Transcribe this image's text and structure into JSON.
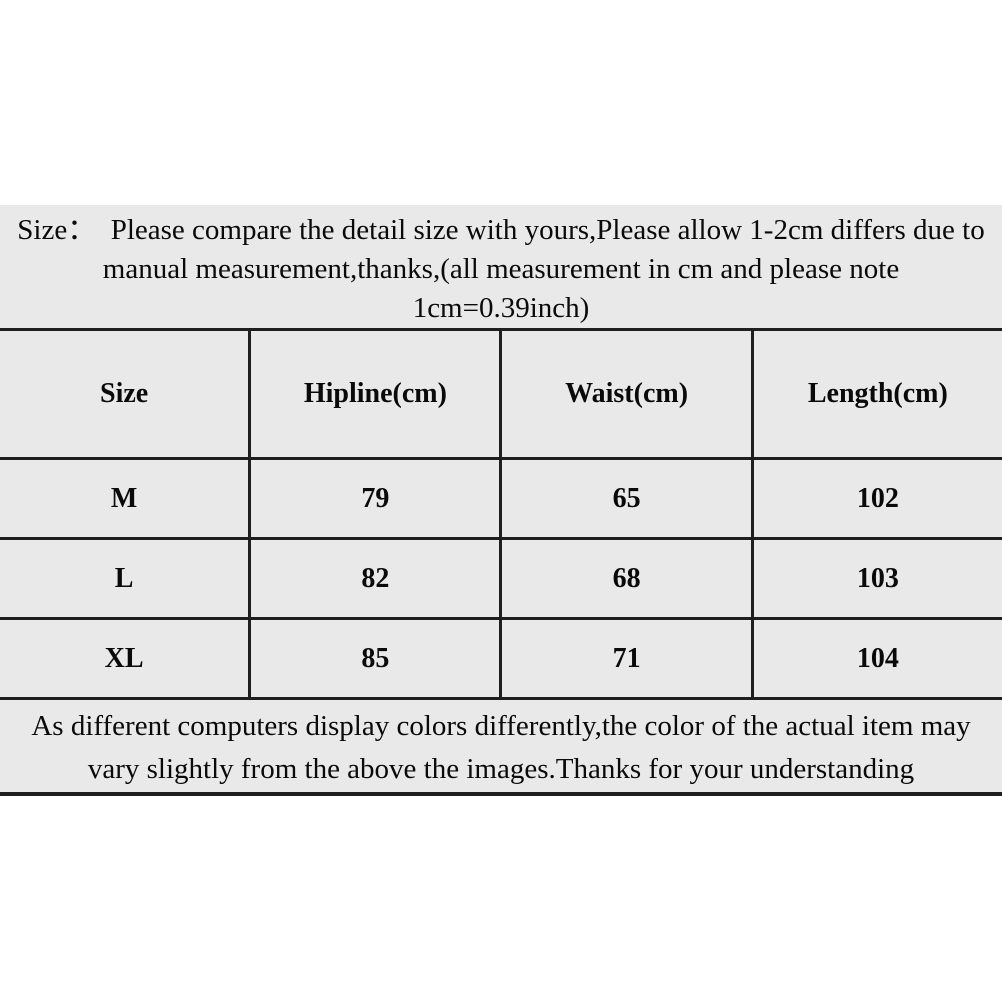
{
  "colors": {
    "page_bg": "#ffffff",
    "panel_bg": "#e9e9e9",
    "border": "#1f1f1f",
    "text": "#0a0a0a"
  },
  "top_note": {
    "lines": [
      "Size：  Please compare the detail size with yours,Please allow 1-2cm differs due to",
      "manual measurement,thanks,(all measurement in cm and please note",
      "1cm=0.39inch)"
    ]
  },
  "size_table": {
    "headers": [
      "Size",
      "Hipline(cm)",
      "Waist(cm)",
      "Length(cm)"
    ],
    "rows": [
      [
        "M",
        "79",
        "65",
        "102"
      ],
      [
        "L",
        "82",
        "68",
        "103"
      ],
      [
        "XL",
        "85",
        "71",
        "104"
      ]
    ]
  },
  "bottom_note": {
    "lines": [
      "As different computers display colors differently,the color of the actual item may",
      "vary slightly from the above the images.Thanks for your understanding"
    ]
  }
}
